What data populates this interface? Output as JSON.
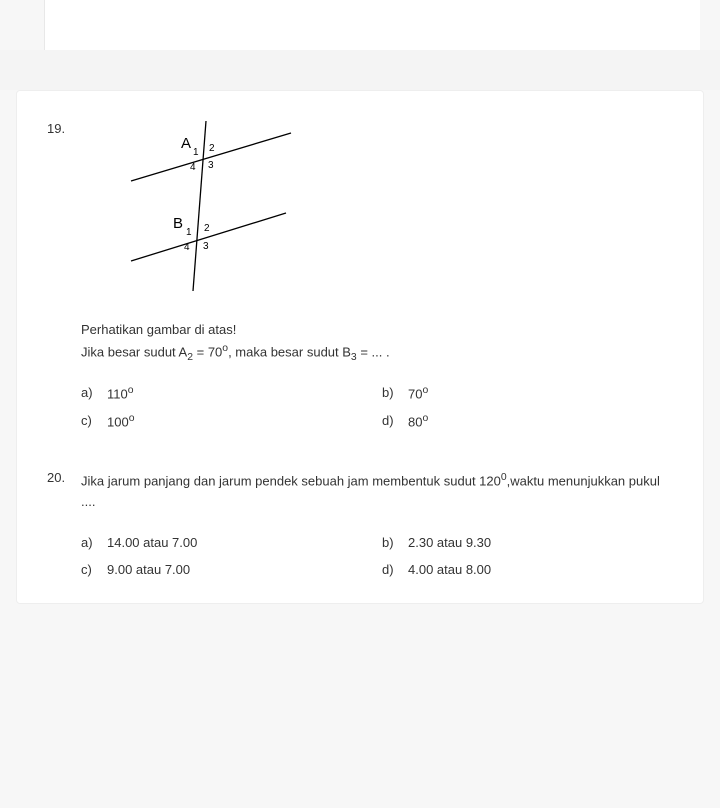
{
  "questions": [
    {
      "number": "19.",
      "instruction": "Perhatikan gambar di atas!",
      "prompt_html": "Jika besar sudut A<sub>2</sub> = 70<sup>o</sup>, maka besar sudut B<sub>3</sub> = ... .",
      "diagram": {
        "point_a_label": "A",
        "point_b_label": "B",
        "a_angles": {
          "tl": "1",
          "tr": "2",
          "br": "3",
          "bl": "4"
        },
        "b_angles": {
          "tl": "1",
          "tr": "2",
          "br": "3",
          "bl": "4"
        },
        "stroke": "#000000",
        "stroke_width": 1.3,
        "font_size_point": 15,
        "font_size_angle": 10
      },
      "options": [
        {
          "label": "a)",
          "text_html": "110<sup>o</sup>"
        },
        {
          "label": "b)",
          "text_html": "70<sup>o</sup>"
        },
        {
          "label": "c)",
          "text_html": "100<sup>o</sup>"
        },
        {
          "label": "d)",
          "text_html": "80<sup>o</sup>"
        }
      ]
    },
    {
      "number": "20.",
      "prompt_html": "Jika jarum panjang dan jarum pendek sebuah jam membentuk sudut 120<sup>0</sup>,waktu menunjukkan pukul ....",
      "options": [
        {
          "label": "a)",
          "text_html": "14.00 atau 7.00"
        },
        {
          "label": "b)",
          "text_html": "2.30 atau 9.30"
        },
        {
          "label": "c)",
          "text_html": "9.00 atau 7.00"
        },
        {
          "label": "d)",
          "text_html": "4.00 atau 8.00"
        }
      ]
    }
  ]
}
